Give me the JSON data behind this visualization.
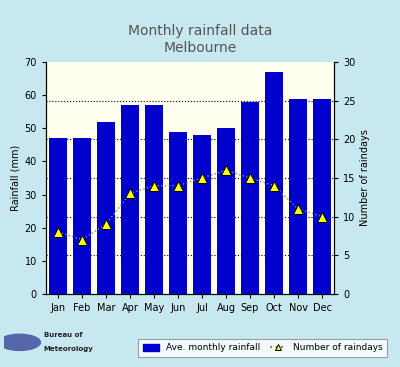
{
  "title_line1": "Monthly rainfall data",
  "title_line2": "Melbourne",
  "months": [
    "Jan",
    "Feb",
    "Mar",
    "Apr",
    "May",
    "Jun",
    "Jul",
    "Aug",
    "Sep",
    "Oct",
    "Nov",
    "Dec"
  ],
  "rainfall_mm": [
    47,
    47,
    52,
    57,
    57,
    49,
    48,
    50,
    58,
    67,
    59,
    59
  ],
  "raindays": [
    8,
    7,
    9,
    13,
    14,
    14,
    15,
    16,
    15,
    14,
    11,
    10
  ],
  "bar_color": "#0000cc",
  "line_color": "#888888",
  "marker_facecolor": "#ffff00",
  "marker_edgecolor": "#000000",
  "background_color": "#fffff0",
  "outer_background": "#c8e8f0",
  "ylabel_left": "Rainfall (mm)",
  "ylabel_right": "Number of raindays",
  "ylim_left": [
    0,
    70
  ],
  "ylim_right": [
    0,
    30
  ],
  "left_ticks": [
    0,
    10,
    20,
    30,
    40,
    50,
    60,
    70
  ],
  "right_ticks": [
    0,
    5,
    10,
    15,
    20,
    25,
    30
  ],
  "right_grid": [
    5,
    10,
    15,
    20,
    25
  ],
  "legend_label_bar": "Ave. monthly rainfall",
  "legend_label_line": "Number of raindays",
  "title_color": "#555555",
  "title_fontsize": 10
}
